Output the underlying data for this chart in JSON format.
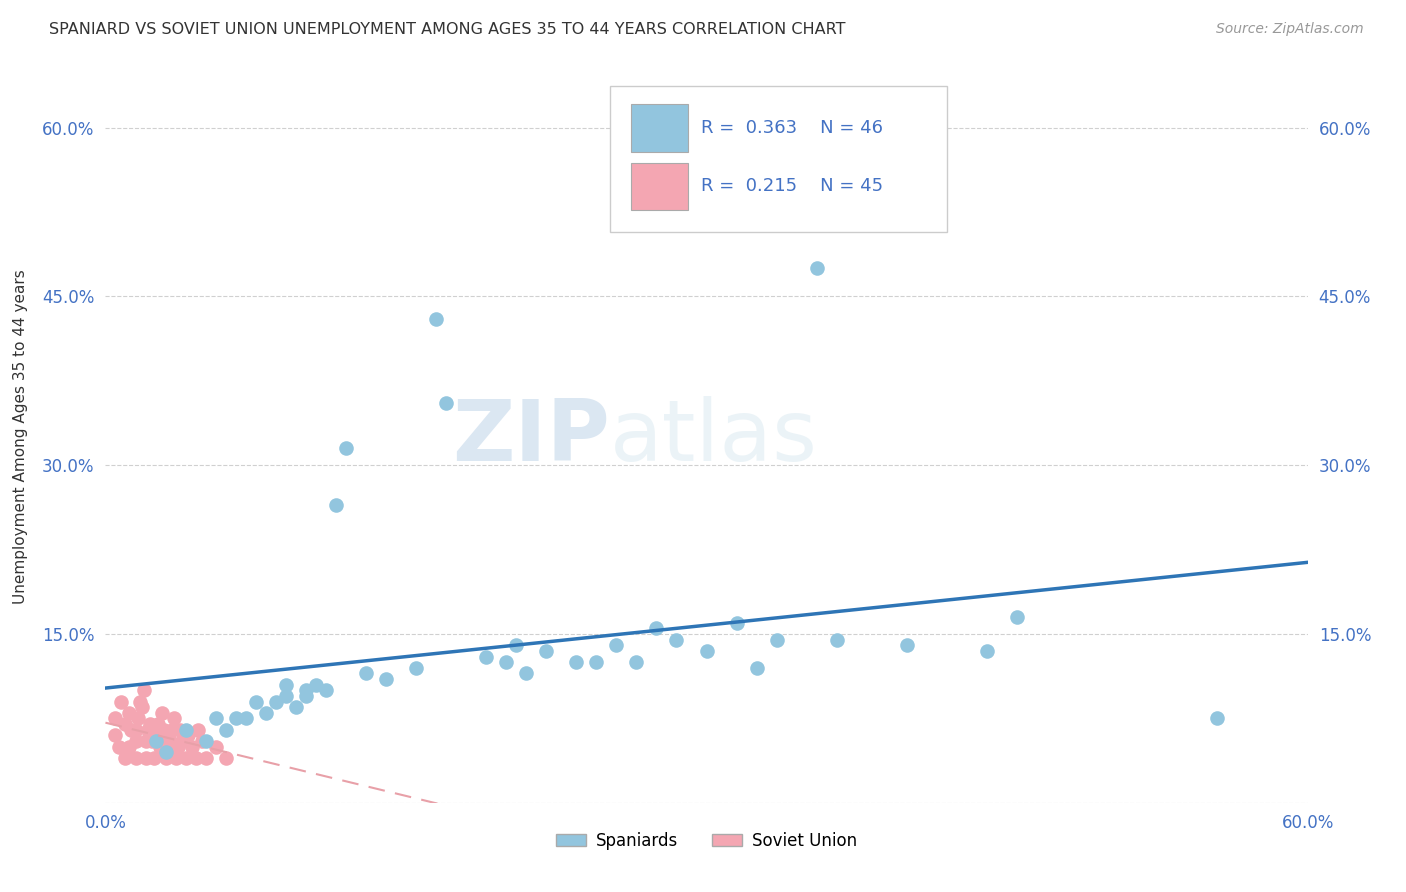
{
  "title": "SPANIARD VS SOVIET UNION UNEMPLOYMENT AMONG AGES 35 TO 44 YEARS CORRELATION CHART",
  "source": "Source: ZipAtlas.com",
  "ylabel": "Unemployment Among Ages 35 to 44 years",
  "legend_spaniards": "Spaniards",
  "legend_soviet": "Soviet Union",
  "R_spaniards": 0.363,
  "N_spaniards": 46,
  "R_soviet": 0.215,
  "N_soviet": 45,
  "xmin": 0.0,
  "xmax": 0.6,
  "ymin": 0.0,
  "ymax": 0.65,
  "yticks": [
    0.0,
    0.15,
    0.3,
    0.45,
    0.6
  ],
  "ytick_labels": [
    "",
    "15.0%",
    "30.0%",
    "45.0%",
    "60.0%"
  ],
  "spaniards_x": [
    0.025,
    0.03,
    0.04,
    0.05,
    0.055,
    0.06,
    0.065,
    0.07,
    0.075,
    0.08,
    0.085,
    0.09,
    0.09,
    0.095,
    0.1,
    0.1,
    0.105,
    0.11,
    0.115,
    0.12,
    0.13,
    0.14,
    0.155,
    0.165,
    0.17,
    0.19,
    0.2,
    0.205,
    0.21,
    0.22,
    0.235,
    0.245,
    0.255,
    0.265,
    0.275,
    0.285,
    0.3,
    0.315,
    0.325,
    0.335,
    0.355,
    0.365,
    0.4,
    0.44,
    0.455,
    0.555
  ],
  "spaniards_y": [
    0.055,
    0.045,
    0.065,
    0.055,
    0.075,
    0.065,
    0.075,
    0.075,
    0.09,
    0.08,
    0.09,
    0.095,
    0.105,
    0.085,
    0.1,
    0.095,
    0.105,
    0.1,
    0.265,
    0.315,
    0.115,
    0.11,
    0.12,
    0.43,
    0.355,
    0.13,
    0.125,
    0.14,
    0.115,
    0.135,
    0.125,
    0.125,
    0.14,
    0.125,
    0.155,
    0.145,
    0.135,
    0.16,
    0.12,
    0.145,
    0.475,
    0.145,
    0.14,
    0.135,
    0.165,
    0.075
  ],
  "soviet_x": [
    0.005,
    0.005,
    0.007,
    0.008,
    0.01,
    0.01,
    0.012,
    0.012,
    0.013,
    0.015,
    0.015,
    0.015,
    0.016,
    0.017,
    0.018,
    0.019,
    0.02,
    0.02,
    0.021,
    0.022,
    0.023,
    0.024,
    0.025,
    0.026,
    0.027,
    0.028,
    0.029,
    0.03,
    0.031,
    0.032,
    0.033,
    0.034,
    0.035,
    0.036,
    0.037,
    0.038,
    0.04,
    0.041,
    0.043,
    0.045,
    0.046,
    0.048,
    0.05,
    0.055,
    0.06
  ],
  "soviet_y": [
    0.06,
    0.075,
    0.05,
    0.09,
    0.04,
    0.07,
    0.05,
    0.08,
    0.065,
    0.04,
    0.055,
    0.065,
    0.075,
    0.09,
    0.085,
    0.1,
    0.04,
    0.055,
    0.065,
    0.07,
    0.055,
    0.04,
    0.06,
    0.07,
    0.05,
    0.08,
    0.065,
    0.04,
    0.06,
    0.055,
    0.065,
    0.075,
    0.04,
    0.05,
    0.065,
    0.055,
    0.04,
    0.06,
    0.05,
    0.04,
    0.065,
    0.055,
    0.04,
    0.05,
    0.04
  ],
  "spaniards_color": "#92c5de",
  "soviet_color": "#f4a6b2",
  "trendline_spaniards_color": "#2e75b6",
  "trendline_soviet_color": "#e8a0a8",
  "watermark_zip": "ZIP",
  "watermark_atlas": "atlas",
  "background_color": "#ffffff",
  "grid_color": "#d0d0d0"
}
